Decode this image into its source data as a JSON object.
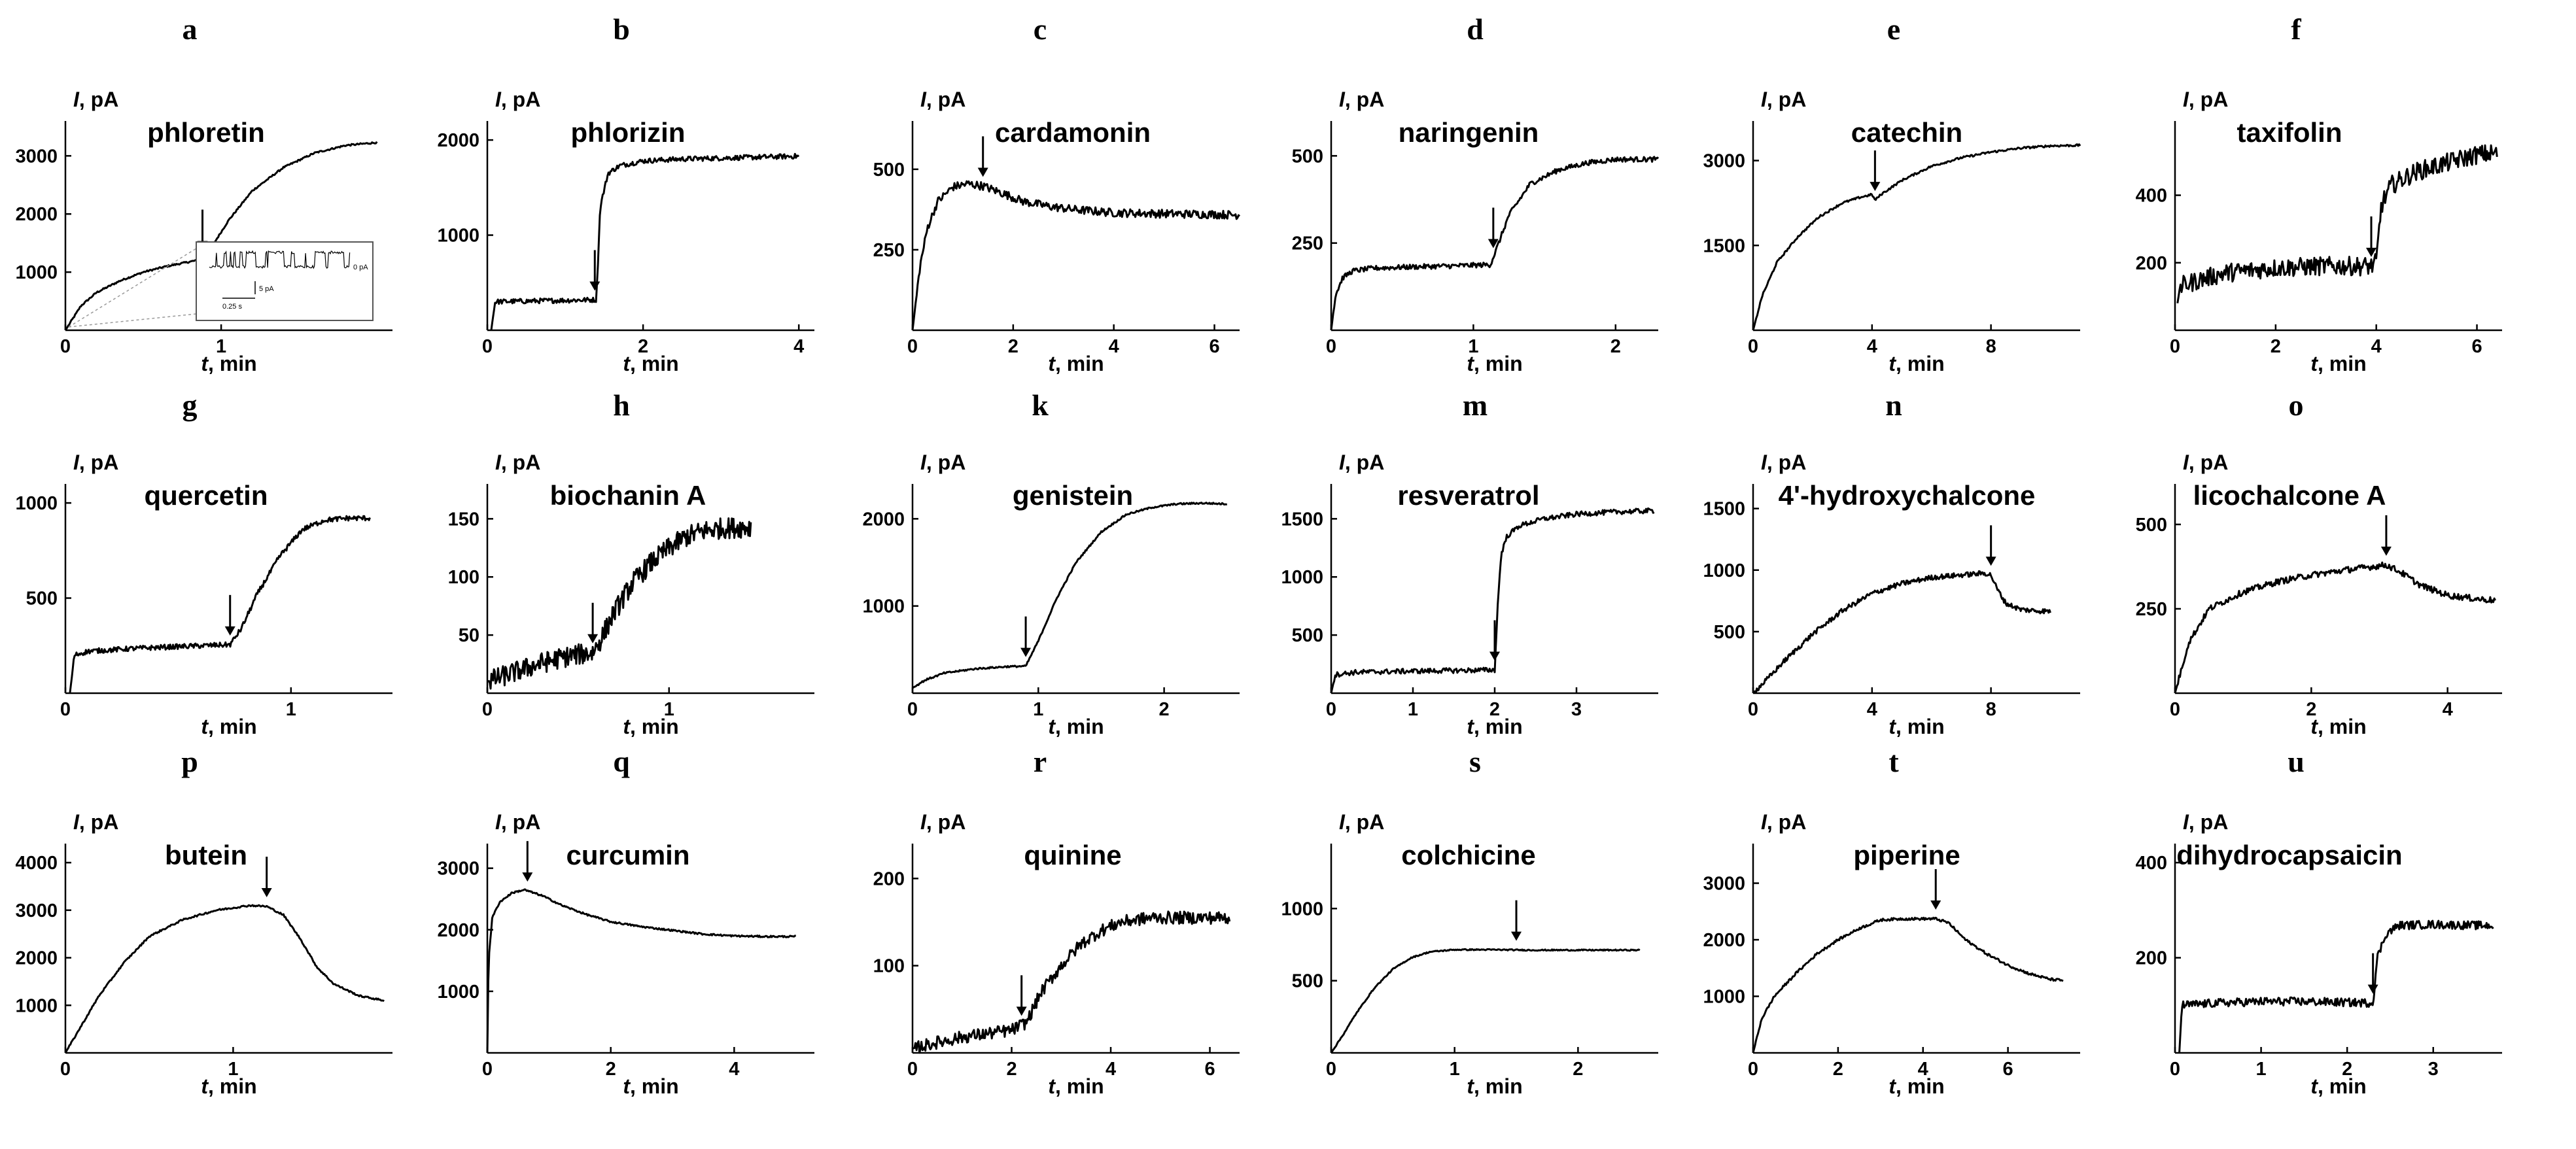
{
  "figure": {
    "y_unit_label": "I, pA",
    "x_unit_label": "t, min",
    "colors": {
      "trace": "#000000",
      "axis": "#000000",
      "background": "#ffffff",
      "inset_border": "#555555"
    },
    "inset": {
      "scale_current": "5 pA",
      "scale_time": "0.25 s",
      "level_label": "0 pA"
    }
  },
  "chart_data": [
    {
      "letter": "a",
      "compound": "phloretin",
      "type": "line",
      "xlim": [
        0,
        2.1
      ],
      "ylim": [
        0,
        3600
      ],
      "xticks": [
        0,
        1
      ],
      "yticks": [
        1000,
        2000,
        3000
      ],
      "arrow_x": 0.88,
      "x": [
        0,
        0.1,
        0.2,
        0.35,
        0.5,
        0.65,
        0.8,
        0.88,
        0.95,
        1.05,
        1.2,
        1.4,
        1.6,
        1.8,
        2.0
      ],
      "y": [
        0,
        420,
        650,
        850,
        1000,
        1100,
        1180,
        1220,
        1480,
        1900,
        2400,
        2800,
        3050,
        3180,
        3230
      ],
      "noise": 0.004,
      "has_inset": true
    },
    {
      "letter": "b",
      "compound": "phlorizin",
      "type": "line",
      "xlim": [
        0,
        4.2
      ],
      "ylim": [
        0,
        2200
      ],
      "xticks": [
        0,
        2,
        4
      ],
      "yticks": [
        1000,
        2000
      ],
      "arrow_x": 1.38,
      "x": [
        0.05,
        0.1,
        1.35,
        1.4,
        1.45,
        1.55,
        1.7,
        2.0,
        2.5,
        3.0,
        3.5,
        4.0
      ],
      "y": [
        0,
        300,
        320,
        320,
        1300,
        1650,
        1730,
        1780,
        1800,
        1810,
        1820,
        1830
      ],
      "noise": 0.012
    },
    {
      "letter": "c",
      "compound": "cardamonin",
      "type": "line",
      "xlim": [
        0,
        6.5
      ],
      "ylim": [
        0,
        650
      ],
      "xticks": [
        0,
        2,
        4,
        6
      ],
      "yticks": [
        250,
        500
      ],
      "arrow_x": 1.4,
      "x": [
        0,
        0.15,
        0.3,
        0.5,
        0.8,
        1.1,
        1.4,
        1.8,
        2.2,
        2.7,
        3.2,
        4.0,
        5.0,
        6.0,
        6.5
      ],
      "y": [
        0,
        200,
        320,
        400,
        445,
        455,
        448,
        425,
        400,
        385,
        375,
        365,
        362,
        360,
        358
      ],
      "noise": 0.02
    },
    {
      "letter": "d",
      "compound": "naringenin",
      "type": "line",
      "xlim": [
        0,
        2.3
      ],
      "ylim": [
        0,
        600
      ],
      "xticks": [
        0,
        1,
        2
      ],
      "yticks": [
        250,
        500
      ],
      "arrow_x": 1.14,
      "x": [
        0,
        0.03,
        0.08,
        0.15,
        0.3,
        0.6,
        0.9,
        1.12,
        1.16,
        1.25,
        1.4,
        1.6,
        1.8,
        2.0,
        2.3
      ],
      "y": [
        0,
        100,
        150,
        170,
        178,
        182,
        185,
        188,
        230,
        330,
        420,
        460,
        480,
        490,
        490
      ],
      "noise": 0.012
    },
    {
      "letter": "e",
      "compound": "catechin",
      "type": "line",
      "xlim": [
        0,
        11
      ],
      "ylim": [
        0,
        3700
      ],
      "xticks": [
        0,
        4,
        8
      ],
      "yticks": [
        1500,
        3000
      ],
      "arrow_x": 4.1,
      "x": [
        0,
        0.3,
        0.8,
        1.5,
        2.2,
        3.0,
        3.6,
        4.0,
        4.1,
        4.3,
        5.0,
        6.0,
        7.0,
        8.0,
        9.0,
        10.0,
        11.0
      ],
      "y": [
        0,
        600,
        1200,
        1650,
        2000,
        2250,
        2350,
        2400,
        2300,
        2400,
        2650,
        2900,
        3050,
        3150,
        3220,
        3260,
        3270
      ],
      "noise": 0.005
    },
    {
      "letter": "f",
      "compound": "taxifolin",
      "type": "line",
      "xlim": [
        0,
        6.5
      ],
      "ylim": [
        0,
        620
      ],
      "xticks": [
        0,
        2,
        4,
        6
      ],
      "yticks": [
        200,
        400
      ],
      "arrow_x": 3.9,
      "x": [
        0.05,
        0.1,
        0.5,
        1.0,
        2.0,
        3.0,
        3.9,
        4.0,
        4.1,
        4.3,
        4.8,
        5.5,
        6.0,
        6.4
      ],
      "y": [
        80,
        130,
        150,
        170,
        185,
        190,
        190,
        200,
        370,
        430,
        470,
        500,
        520,
        525
      ],
      "noise": 0.045
    },
    {
      "letter": "g",
      "compound": "quercetin",
      "type": "line",
      "xlim": [
        0,
        1.45
      ],
      "ylim": [
        0,
        1100
      ],
      "xticks": [
        0,
        1
      ],
      "yticks": [
        500,
        1000
      ],
      "arrow_x": 0.73,
      "x": [
        0.02,
        0.04,
        0.1,
        0.3,
        0.5,
        0.73,
        0.78,
        0.85,
        0.95,
        1.05,
        1.15,
        1.25,
        1.35
      ],
      "y": [
        0,
        200,
        220,
        235,
        245,
        255,
        340,
        520,
        720,
        860,
        910,
        920,
        920
      ],
      "noise": 0.012
    },
    {
      "letter": "h",
      "compound": "biochanin A",
      "type": "line",
      "xlim": [
        0,
        1.8
      ],
      "ylim": [
        0,
        180
      ],
      "xticks": [
        0,
        1
      ],
      "yticks": [
        50,
        100,
        150
      ],
      "arrow_x": 0.58,
      "x": [
        0,
        0.15,
        0.3,
        0.45,
        0.58,
        0.62,
        0.7,
        0.8,
        0.9,
        1.0,
        1.1,
        1.2,
        1.3,
        1.45
      ],
      "y": [
        10,
        18,
        26,
        32,
        35,
        45,
        70,
        95,
        112,
        125,
        135,
        140,
        142,
        143
      ],
      "noise": 0.05
    },
    {
      "letter": "k",
      "compound": "genistein",
      "type": "line",
      "xlim": [
        0,
        2.6
      ],
      "ylim": [
        0,
        2400
      ],
      "xticks": [
        0,
        1,
        2
      ],
      "yticks": [
        1000,
        2000
      ],
      "arrow_x": 0.9,
      "x": [
        0,
        0.1,
        0.25,
        0.5,
        0.75,
        0.9,
        1.0,
        1.15,
        1.3,
        1.5,
        1.7,
        1.9,
        2.1,
        2.3,
        2.5
      ],
      "y": [
        60,
        150,
        230,
        280,
        305,
        310,
        600,
        1100,
        1500,
        1850,
        2050,
        2130,
        2170,
        2180,
        2170
      ],
      "noise": 0.004
    },
    {
      "letter": "m",
      "compound": "resveratrol",
      "type": "line",
      "xlim": [
        0,
        4.0
      ],
      "ylim": [
        0,
        1800
      ],
      "xticks": [
        0,
        1,
        2,
        3
      ],
      "yticks": [
        500,
        1000,
        1500
      ],
      "arrow_x": 2.0,
      "x": [
        0,
        0.05,
        0.3,
        1.0,
        1.5,
        2.0,
        2.04,
        2.08,
        2.15,
        2.3,
        2.6,
        3.0,
        3.5,
        3.95
      ],
      "y": [
        0,
        160,
        180,
        190,
        195,
        200,
        800,
        1200,
        1350,
        1440,
        1500,
        1540,
        1560,
        1570
      ],
      "noise": 0.012
    },
    {
      "letter": "n",
      "compound": "4'-hydroxychalcone",
      "type": "line",
      "xlim": [
        0,
        11
      ],
      "ylim": [
        0,
        1700
      ],
      "xticks": [
        0,
        4,
        8
      ],
      "yticks": [
        500,
        1000,
        1500
      ],
      "arrow_x": 8.0,
      "x": [
        0,
        0.5,
        1.0,
        2.0,
        3.0,
        4.0,
        5.0,
        6.0,
        7.0,
        7.8,
        8.0,
        8.2,
        8.5,
        9.0,
        9.5,
        10.0
      ],
      "y": [
        0,
        120,
        250,
        480,
        670,
        810,
        890,
        940,
        960,
        975,
        960,
        850,
        730,
        680,
        670,
        665
      ],
      "noise": 0.012
    },
    {
      "letter": "o",
      "compound": "licochalcone A",
      "type": "line",
      "xlim": [
        0,
        4.8
      ],
      "ylim": [
        0,
        620
      ],
      "xticks": [
        0,
        2,
        4
      ],
      "yticks": [
        250,
        500
      ],
      "arrow_x": 3.1,
      "x": [
        0,
        0.2,
        0.5,
        1.0,
        1.5,
        2.0,
        2.5,
        2.9,
        3.1,
        3.3,
        3.6,
        4.0,
        4.4,
        4.7
      ],
      "y": [
        0,
        150,
        250,
        300,
        330,
        350,
        365,
        375,
        380,
        360,
        320,
        290,
        280,
        275
      ],
      "noise": 0.015
    },
    {
      "letter": "p",
      "compound": "butein",
      "type": "line",
      "xlim": [
        0,
        1.95
      ],
      "ylim": [
        0,
        4400
      ],
      "xticks": [
        0,
        1
      ],
      "yticks": [
        1000,
        2000,
        3000,
        4000
      ],
      "arrow_x": 1.2,
      "x": [
        0,
        0.1,
        0.2,
        0.35,
        0.5,
        0.7,
        0.9,
        1.1,
        1.2,
        1.3,
        1.4,
        1.5,
        1.6,
        1.75,
        1.9
      ],
      "y": [
        0,
        600,
        1200,
        1900,
        2450,
        2800,
        3000,
        3100,
        3080,
        2900,
        2400,
        1800,
        1450,
        1200,
        1100
      ],
      "noise": 0.004
    },
    {
      "letter": "q",
      "compound": "curcumin",
      "type": "line",
      "xlim": [
        0,
        5.3
      ],
      "ylim": [
        0,
        3400
      ],
      "xticks": [
        0,
        2,
        4
      ],
      "yticks": [
        1000,
        2000,
        3000
      ],
      "arrow_x": 0.65,
      "x": [
        0,
        0.02,
        0.08,
        0.2,
        0.4,
        0.6,
        0.9,
        1.2,
        1.6,
        2.0,
        2.5,
        3.0,
        3.5,
        4.0,
        4.5,
        5.0
      ],
      "y": [
        0,
        1500,
        2200,
        2450,
        2600,
        2650,
        2550,
        2400,
        2250,
        2130,
        2050,
        1990,
        1930,
        1900,
        1890,
        1890
      ],
      "noise": 0.004
    },
    {
      "letter": "r",
      "compound": "quinine",
      "type": "line",
      "xlim": [
        0,
        6.6
      ],
      "ylim": [
        0,
        240
      ],
      "xticks": [
        0,
        2,
        4,
        6
      ],
      "yticks": [
        100,
        200
      ],
      "arrow_x": 2.2,
      "x": [
        0,
        0.5,
        1.0,
        1.5,
        2.0,
        2.3,
        2.6,
        3.0,
        3.4,
        3.8,
        4.2,
        4.8,
        5.5,
        6.4
      ],
      "y": [
        5,
        12,
        18,
        22,
        26,
        35,
        70,
        100,
        125,
        140,
        150,
        155,
        155,
        155
      ],
      "noise": 0.03
    },
    {
      "letter": "s",
      "compound": "colchicine",
      "type": "line",
      "xlim": [
        0,
        2.65
      ],
      "ylim": [
        0,
        1450
      ],
      "xticks": [
        0,
        1,
        2
      ],
      "yticks": [
        500,
        1000
      ],
      "arrow_x": 1.5,
      "x": [
        0,
        0.1,
        0.2,
        0.35,
        0.5,
        0.65,
        0.8,
        1.0,
        1.3,
        1.6,
        2.0,
        2.5
      ],
      "y": [
        0,
        130,
        270,
        450,
        580,
        660,
        700,
        715,
        715,
        712,
        712,
        712
      ],
      "noise": 0.003
    },
    {
      "letter": "t",
      "compound": "piperine",
      "type": "line",
      "xlim": [
        0,
        7.7
      ],
      "ylim": [
        0,
        3700
      ],
      "xticks": [
        0,
        2,
        4,
        6
      ],
      "yticks": [
        1000,
        2000,
        3000
      ],
      "arrow_x": 4.3,
      "x": [
        0,
        0.2,
        0.5,
        1.0,
        1.5,
        2.0,
        2.5,
        3.0,
        3.5,
        4.3,
        4.6,
        5.0,
        5.5,
        6.0,
        6.5,
        7.0,
        7.3
      ],
      "y": [
        0,
        600,
        1000,
        1400,
        1750,
        2000,
        2200,
        2350,
        2370,
        2370,
        2300,
        2000,
        1750,
        1550,
        1400,
        1300,
        1280
      ],
      "noise": 0.006
    },
    {
      "letter": "u",
      "compound": "dihydrocapsaicin",
      "type": "line",
      "xlim": [
        0,
        3.8
      ],
      "ylim": [
        0,
        440
      ],
      "xticks": [
        0,
        1,
        2,
        3
      ],
      "yticks": [
        200,
        400
      ],
      "arrow_x": 2.3,
      "x": [
        0.05,
        0.08,
        0.5,
        1.0,
        1.5,
        2.0,
        2.3,
        2.35,
        2.45,
        2.6,
        3.0,
        3.5,
        3.7
      ],
      "y": [
        0,
        100,
        105,
        108,
        108,
        106,
        105,
        200,
        250,
        268,
        270,
        268,
        268
      ],
      "noise": 0.02
    }
  ]
}
